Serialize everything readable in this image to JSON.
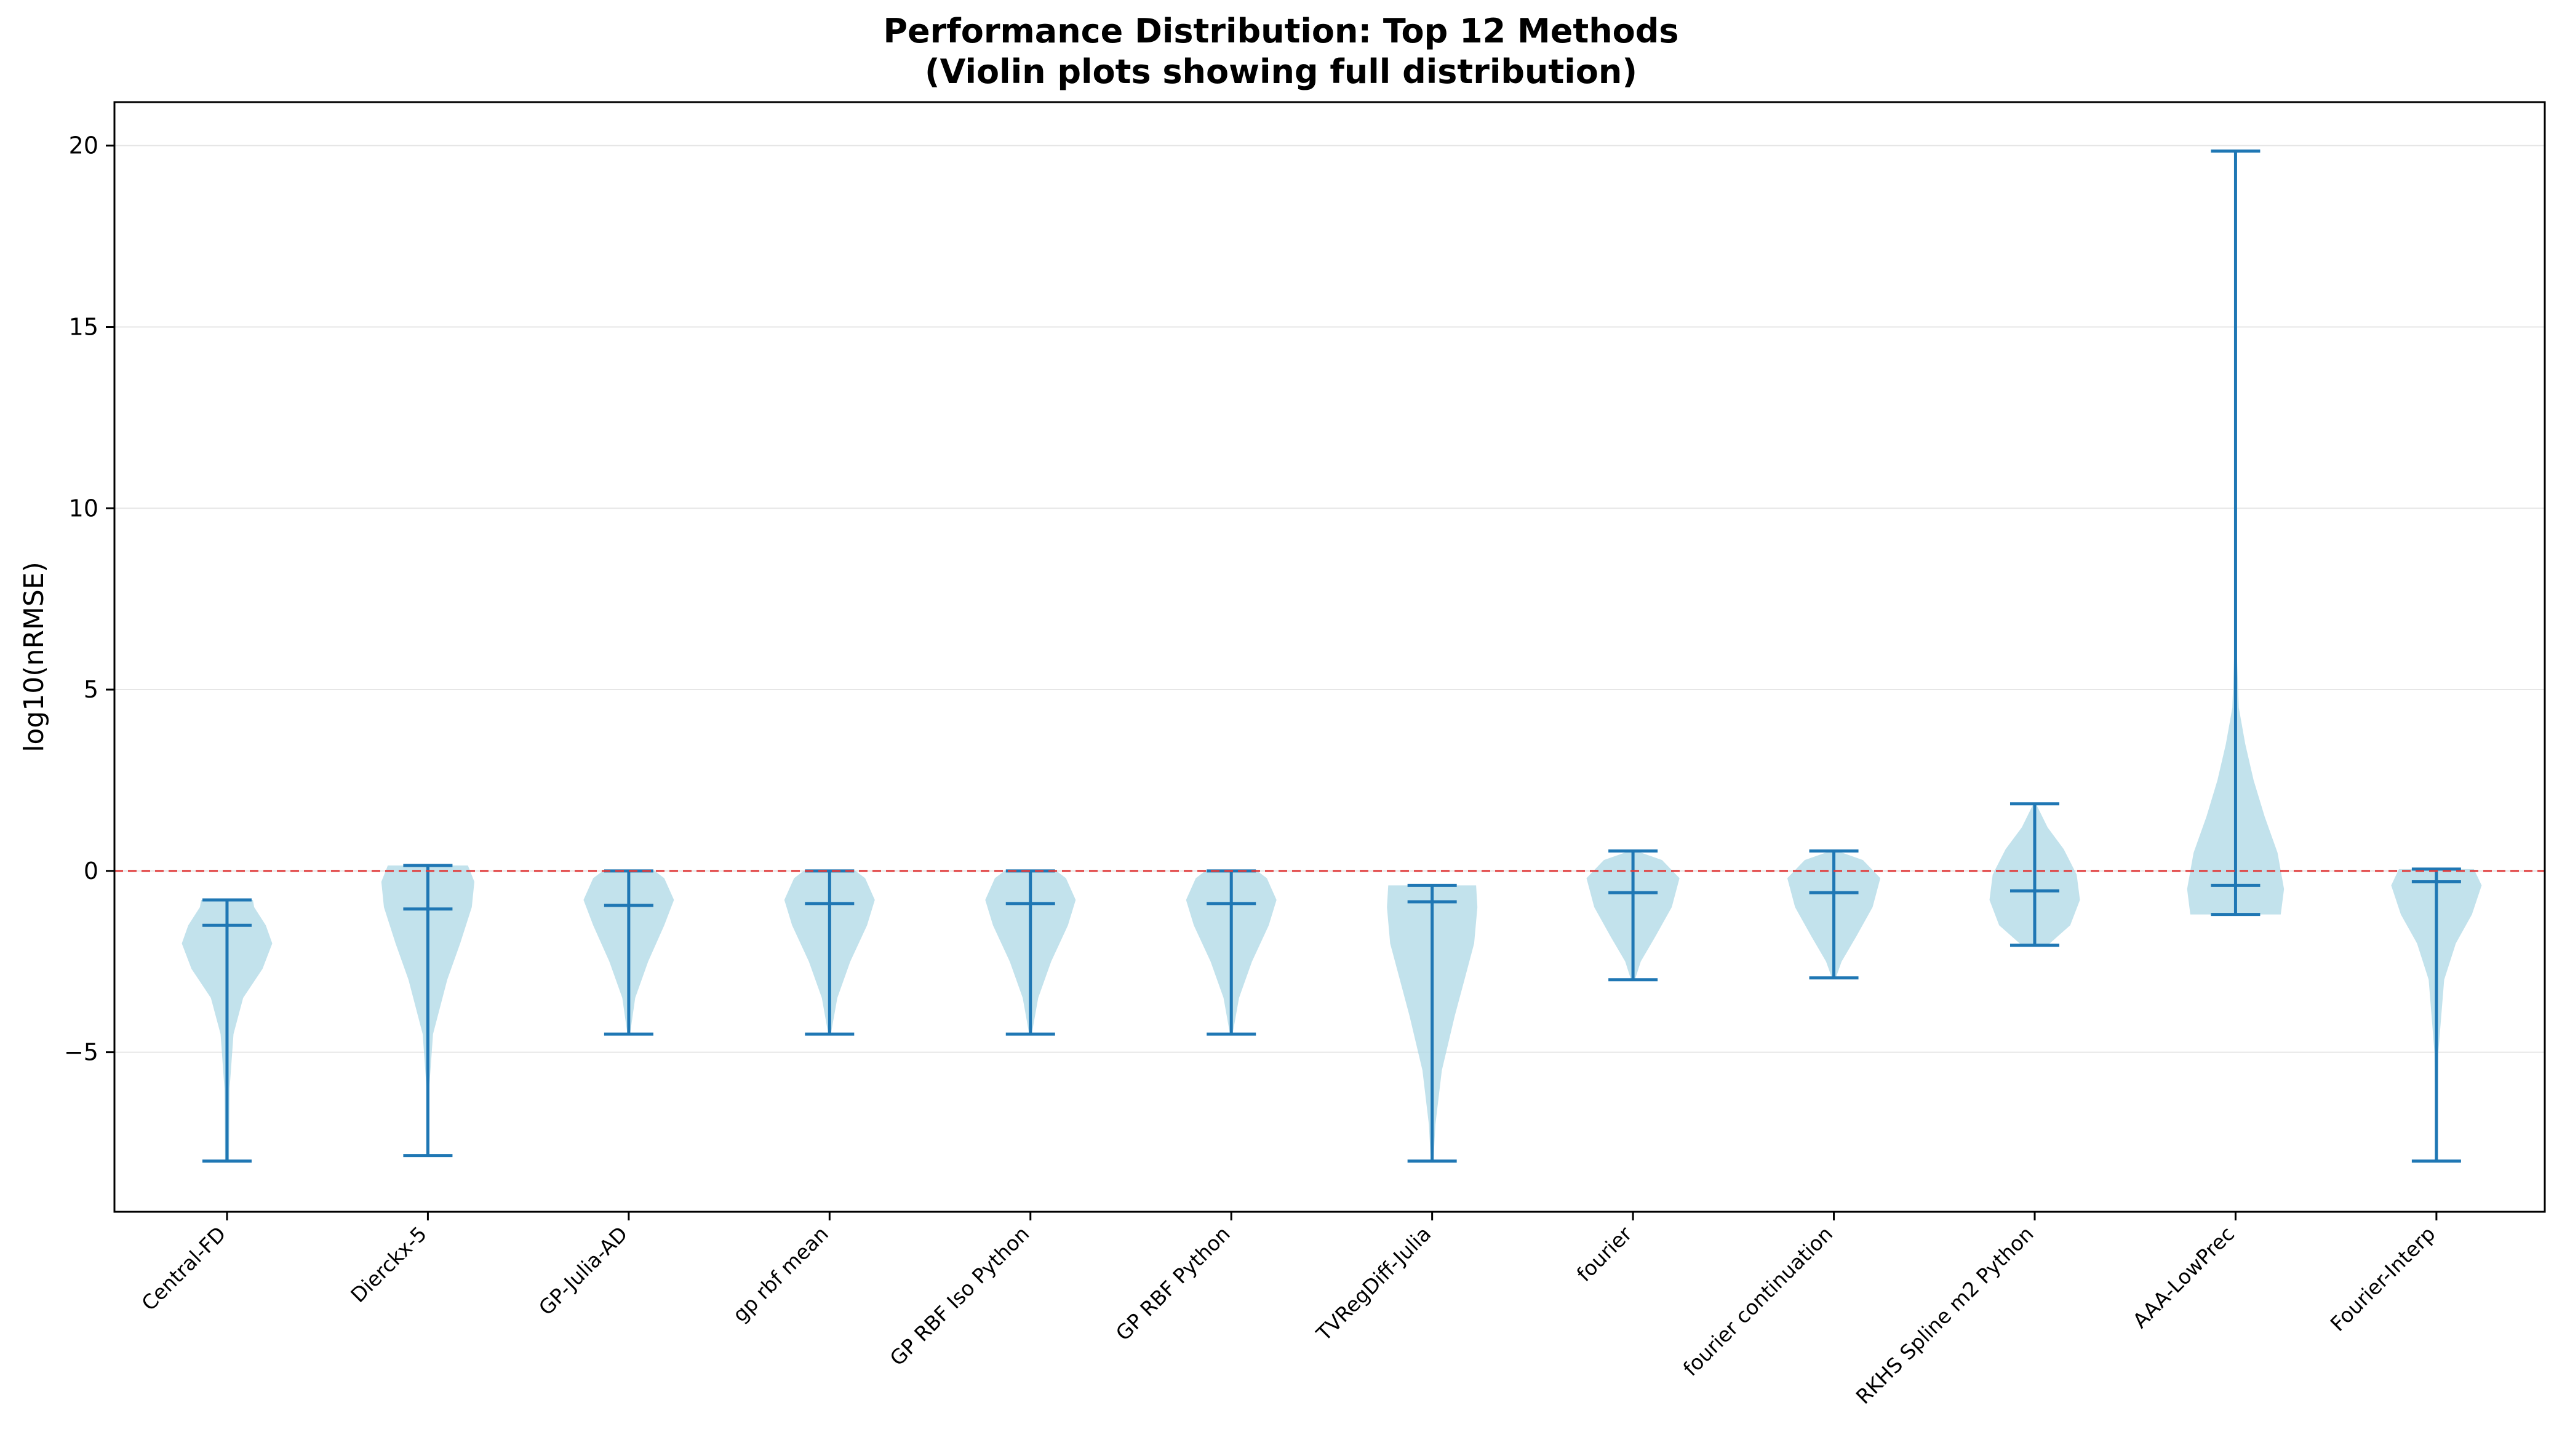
{
  "chart_data": {
    "type": "violin",
    "title": "Performance Distribution: Top 12 Methods",
    "subtitle": "(Violin plots showing full distribution)",
    "xlabel": "",
    "ylabel": "log10(nRMSE)",
    "ylim": [
      -9.4,
      21.2
    ],
    "yticks": [
      -5,
      0,
      5,
      10,
      15,
      20
    ],
    "ytick_labels": [
      "−5",
      "0",
      "5",
      "10",
      "15",
      "20"
    ],
    "grid": "horizontal",
    "reference_line": {
      "y": 0,
      "color": "#e03c3c",
      "style": "dashed"
    },
    "colors": {
      "violin_fill": "#add8e6",
      "whisker": "#1f77b4",
      "axis": "#000000",
      "grid": "#e6e6e6"
    },
    "categories": [
      "Central-FD",
      "Dierckx-5",
      "GP-Julia-AD",
      "gp rbf mean",
      "GP RBF Iso Python",
      "GP RBF Python",
      "TVRegDiff-Julia",
      "fourier",
      "fourier continuation",
      "RKHS Spline m2 Python",
      "AAA-LowPrec",
      "Fourier-Interp"
    ],
    "series": [
      {
        "min": -8.0,
        "max": -0.8,
        "median": -1.5,
        "density": [
          [
            -8.0,
            0.03
          ],
          [
            -6,
            0.04
          ],
          [
            -4.5,
            0.1
          ],
          [
            -3.5,
            0.25
          ],
          [
            -2.7,
            0.55
          ],
          [
            -2.0,
            0.7
          ],
          [
            -1.5,
            0.6
          ],
          [
            -1.0,
            0.42
          ],
          [
            -0.8,
            0.4
          ]
        ]
      },
      {
        "min": -7.85,
        "max": 0.15,
        "median": -1.05,
        "density": [
          [
            -7.85,
            0.01
          ],
          [
            -6,
            0.02
          ],
          [
            -4.5,
            0.08
          ],
          [
            -3,
            0.3
          ],
          [
            -2,
            0.5
          ],
          [
            -1,
            0.68
          ],
          [
            -0.3,
            0.72
          ],
          [
            0.15,
            0.62
          ]
        ]
      },
      {
        "min": -4.5,
        "max": 0.0,
        "median": -0.95,
        "density": [
          [
            -4.5,
            0.02
          ],
          [
            -3.5,
            0.1
          ],
          [
            -2.5,
            0.3
          ],
          [
            -1.5,
            0.55
          ],
          [
            -0.8,
            0.7
          ],
          [
            -0.2,
            0.55
          ],
          [
            0,
            0.4
          ]
        ]
      },
      {
        "min": -4.5,
        "max": 0.0,
        "median": -0.9,
        "density": [
          [
            -4.5,
            0.02
          ],
          [
            -3.5,
            0.12
          ],
          [
            -2.5,
            0.32
          ],
          [
            -1.5,
            0.58
          ],
          [
            -0.8,
            0.7
          ],
          [
            -0.2,
            0.55
          ],
          [
            0,
            0.4
          ]
        ]
      },
      {
        "min": -4.5,
        "max": 0.0,
        "median": -0.9,
        "density": [
          [
            -4.5,
            0.02
          ],
          [
            -3.5,
            0.12
          ],
          [
            -2.5,
            0.32
          ],
          [
            -1.5,
            0.58
          ],
          [
            -0.8,
            0.7
          ],
          [
            -0.2,
            0.55
          ],
          [
            0,
            0.4
          ]
        ]
      },
      {
        "min": -4.5,
        "max": 0.0,
        "median": -0.9,
        "density": [
          [
            -4.5,
            0.02
          ],
          [
            -3.5,
            0.12
          ],
          [
            -2.5,
            0.32
          ],
          [
            -1.5,
            0.58
          ],
          [
            -0.8,
            0.7
          ],
          [
            -0.2,
            0.55
          ],
          [
            0,
            0.4
          ]
        ]
      },
      {
        "min": -8.0,
        "max": -0.4,
        "median": -0.85,
        "density": [
          [
            -8,
            0.02
          ],
          [
            -7,
            0.05
          ],
          [
            -5.5,
            0.15
          ],
          [
            -4,
            0.35
          ],
          [
            -3,
            0.5
          ],
          [
            -2,
            0.65
          ],
          [
            -1,
            0.7
          ],
          [
            -0.4,
            0.68
          ]
        ]
      },
      {
        "min": -3.0,
        "max": 0.55,
        "median": -0.6,
        "density": [
          [
            -3,
            0.03
          ],
          [
            -2.5,
            0.12
          ],
          [
            -1.8,
            0.35
          ],
          [
            -1,
            0.6
          ],
          [
            -0.2,
            0.72
          ],
          [
            0.3,
            0.45
          ],
          [
            0.55,
            0.05
          ]
        ]
      },
      {
        "min": -2.95,
        "max": 0.55,
        "median": -0.6,
        "density": [
          [
            -2.95,
            0.03
          ],
          [
            -2.5,
            0.12
          ],
          [
            -1.8,
            0.35
          ],
          [
            -1,
            0.6
          ],
          [
            -0.2,
            0.72
          ],
          [
            0.3,
            0.45
          ],
          [
            0.55,
            0.05
          ]
        ]
      },
      {
        "min": -2.05,
        "max": 1.85,
        "median": -0.55,
        "density": [
          [
            -2.05,
            0.2
          ],
          [
            -1.5,
            0.55
          ],
          [
            -0.8,
            0.7
          ],
          [
            -0.1,
            0.65
          ],
          [
            0.6,
            0.45
          ],
          [
            1.2,
            0.2
          ],
          [
            1.85,
            0.02
          ]
        ]
      },
      {
        "min": -1.2,
        "max": 19.85,
        "median": -0.4,
        "density": [
          [
            -1.2,
            0.7
          ],
          [
            -0.5,
            0.75
          ],
          [
            0.5,
            0.65
          ],
          [
            1.5,
            0.45
          ],
          [
            2.5,
            0.28
          ],
          [
            3.5,
            0.15
          ],
          [
            4.5,
            0.05
          ],
          [
            6,
            0.02
          ],
          [
            10,
            0.01
          ],
          [
            19.85,
            0.005
          ]
        ]
      },
      {
        "min": -8.0,
        "max": 0.05,
        "median": -0.3,
        "density": [
          [
            -8,
            0.01
          ],
          [
            -5,
            0.03
          ],
          [
            -3,
            0.12
          ],
          [
            -2,
            0.3
          ],
          [
            -1.2,
            0.55
          ],
          [
            -0.4,
            0.7
          ],
          [
            0.05,
            0.58
          ]
        ]
      }
    ]
  }
}
